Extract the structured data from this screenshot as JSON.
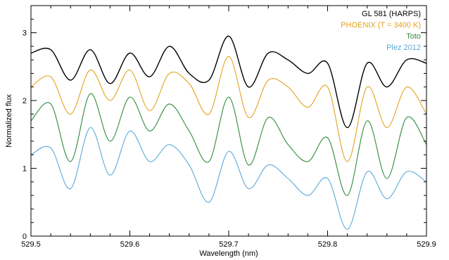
{
  "chart_data": {
    "type": "line",
    "title": "",
    "xlabel": "Wavelength (nm)",
    "ylabel": "Normalized flux",
    "xlim": [
      529.5,
      529.9
    ],
    "ylim": [
      0,
      3.4
    ],
    "x_ticks": [
      529.5,
      529.6,
      529.7,
      529.8,
      529.9
    ],
    "x_tick_labels": [
      "529.5",
      "529.6",
      "529.7",
      "529.8",
      "529.9"
    ],
    "y_ticks": [
      0,
      1,
      2,
      3
    ],
    "y_tick_labels": [
      "0",
      "1",
      "2",
      "3"
    ],
    "grid": false,
    "legend_position": "top-right",
    "x": [
      529.5,
      529.52,
      529.54,
      529.56,
      529.58,
      529.6,
      529.62,
      529.64,
      529.66,
      529.68,
      529.7,
      529.72,
      529.74,
      529.76,
      529.78,
      529.8,
      529.82,
      529.84,
      529.86,
      529.88,
      529.9
    ],
    "series": [
      {
        "name": "GL 581 (HARPS)",
        "color": "#000000",
        "values": [
          2.7,
          2.75,
          2.3,
          2.75,
          2.25,
          2.7,
          2.35,
          2.8,
          2.4,
          2.3,
          2.95,
          2.2,
          2.7,
          2.6,
          2.4,
          2.55,
          1.6,
          2.55,
          2.2,
          2.6,
          2.55
        ]
      },
      {
        "name": "PHOENIX (T = 3400 K)",
        "color": "#E4A21E",
        "values": [
          2.2,
          2.35,
          1.8,
          2.45,
          2.0,
          2.45,
          1.85,
          2.4,
          2.25,
          1.8,
          2.65,
          1.75,
          2.3,
          2.2,
          1.9,
          2.2,
          1.1,
          2.2,
          1.6,
          2.2,
          1.8
        ]
      },
      {
        "name": "Toto",
        "color": "#2E8B3B",
        "values": [
          1.7,
          1.95,
          1.1,
          2.1,
          1.4,
          2.05,
          1.55,
          1.95,
          1.55,
          1.1,
          2.05,
          1.05,
          1.75,
          1.35,
          1.1,
          1.45,
          0.6,
          1.7,
          0.85,
          1.75,
          1.35
        ]
      },
      {
        "name": "Plez 2012",
        "color": "#5BA9D9",
        "values": [
          1.2,
          1.3,
          0.7,
          1.6,
          0.9,
          1.55,
          1.1,
          1.35,
          1.05,
          0.5,
          1.25,
          0.7,
          1.05,
          0.85,
          0.6,
          0.85,
          0.1,
          0.95,
          0.55,
          0.95,
          0.8
        ]
      }
    ]
  }
}
